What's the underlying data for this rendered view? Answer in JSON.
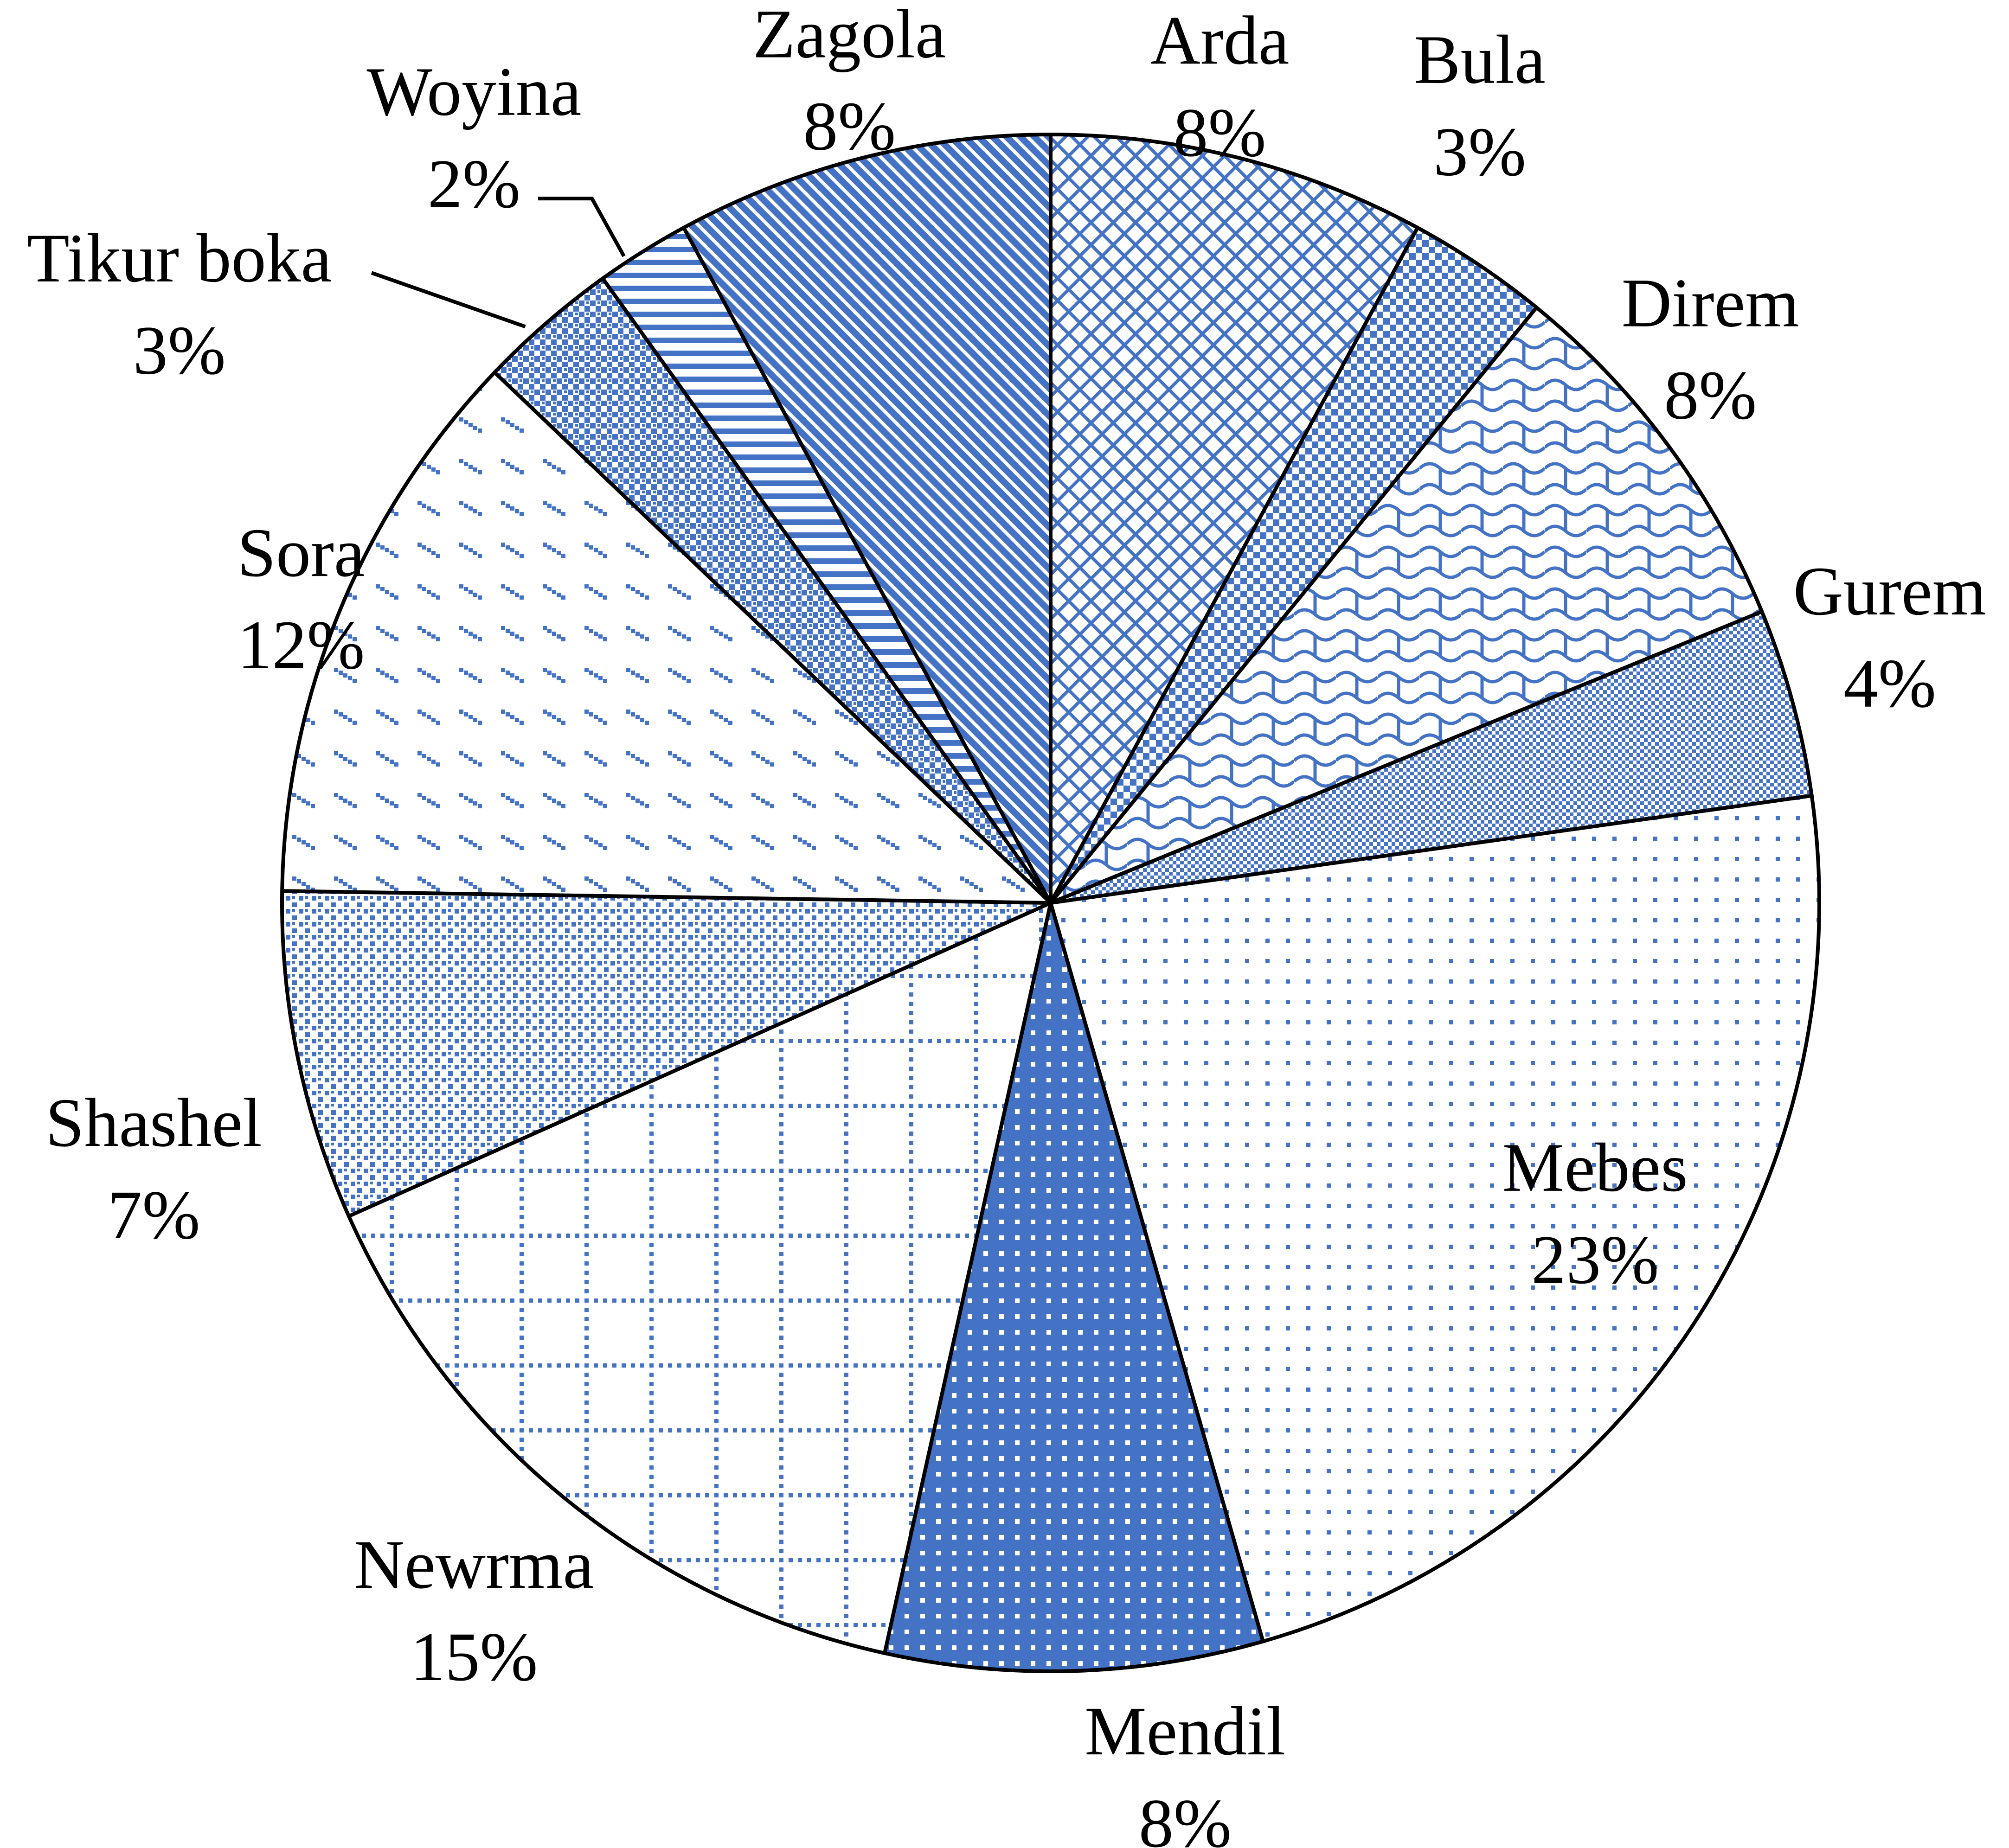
{
  "chart_data": {
    "type": "pie",
    "categories": [
      "Arda",
      "Bula",
      "Direm",
      "Gurem",
      "Mebes",
      "Mendil",
      "Newrma",
      "Shashel",
      "Sora",
      "Tikur boka",
      "Woyina",
      "Zagola"
    ],
    "values": [
      8,
      3,
      8,
      4,
      23,
      8,
      15,
      7,
      12,
      3,
      2,
      8
    ],
    "value_labels": [
      "8%",
      "3%",
      "8%",
      "4%",
      "23%",
      "8%",
      "15%",
      "7%",
      "12%",
      "3%",
      "2%",
      "8%"
    ],
    "color": "#4472c4"
  }
}
